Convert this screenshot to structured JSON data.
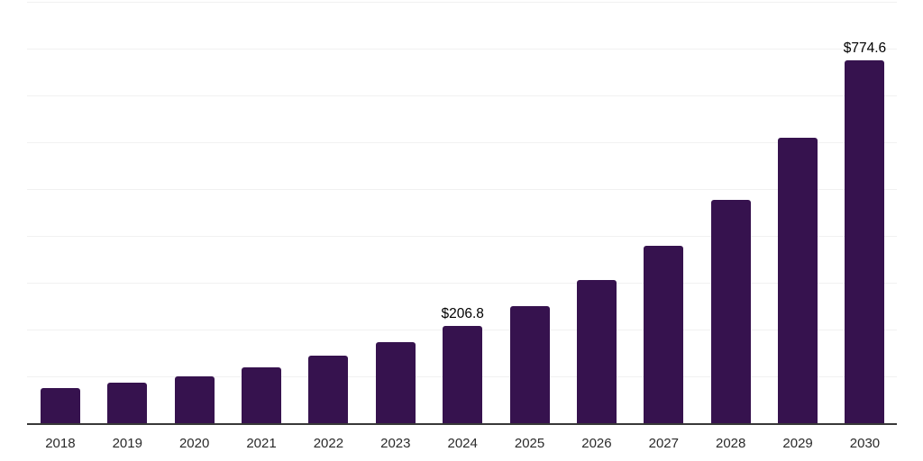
{
  "chart_data": {
    "type": "bar",
    "title": "",
    "xlabel": "",
    "ylabel": "",
    "categories": [
      "2018",
      "2019",
      "2020",
      "2021",
      "2022",
      "2023",
      "2024",
      "2025",
      "2026",
      "2027",
      "2028",
      "2029",
      "2030"
    ],
    "values": [
      75.0,
      86.5,
      100.6,
      119.8,
      144.5,
      173.4,
      206.8,
      250.0,
      306.3,
      378.2,
      477.4,
      608.9,
      774.6
    ],
    "value_labels": [
      "",
      "",
      "",
      "",
      "",
      "",
      "$206.8",
      "",
      "",
      "",
      "",
      "",
      "$774.6"
    ],
    "ylim": [
      0,
      900
    ],
    "gridline_step": 100,
    "grid": "horizontal",
    "legend": "none",
    "colors": {
      "bar": "#36124E",
      "axis_line": "#383838",
      "gridline": "#f1f1f1",
      "value_label": "#000000",
      "tick_label": "#2a2a2a",
      "background": "#ffffff"
    }
  }
}
